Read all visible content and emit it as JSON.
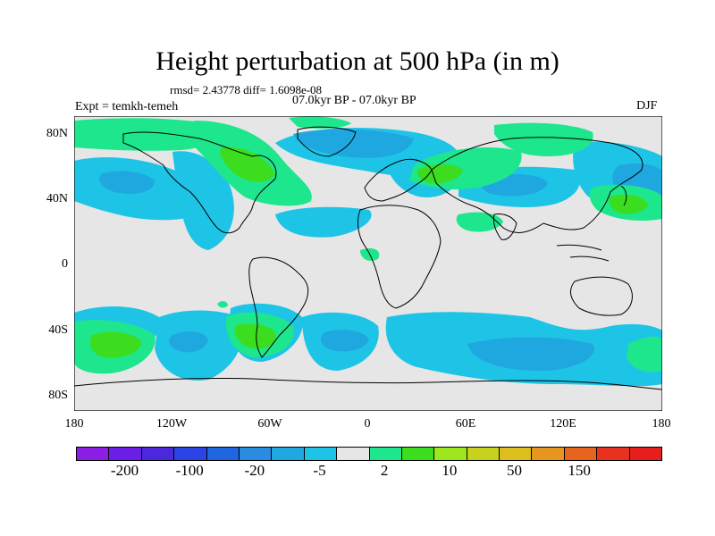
{
  "title": "Height perturbation at 500 hPa (in m)",
  "stats": "rmsd= 2.43778 diff= 1.6098e-08",
  "experiment": "Expt = temkh-temeh",
  "period": "07.0kyr BP - 07.0kyr BP",
  "season": "DJF",
  "lat_labels": [
    "80N",
    "40N",
    "0",
    "40S",
    "80S"
  ],
  "lon_labels": [
    "180",
    "120W",
    "60W",
    "0",
    "60E",
    "120E",
    "180"
  ],
  "colorbar": {
    "colors": [
      "#8c1ee6",
      "#6a1ee6",
      "#4b28dc",
      "#2a44e6",
      "#1f66e0",
      "#2a8ce0",
      "#1fa8e0",
      "#1ec4e6",
      "#e6e6e6",
      "#1ee68c",
      "#3cdc1e",
      "#9ee61e",
      "#c8d21e",
      "#dcbe1e",
      "#e6961e",
      "#e6641e",
      "#e6321e",
      "#e61e1e"
    ],
    "labels": [
      "-200",
      "-100",
      "-20",
      "-5",
      "2",
      "10",
      "50",
      "150"
    ]
  }
}
